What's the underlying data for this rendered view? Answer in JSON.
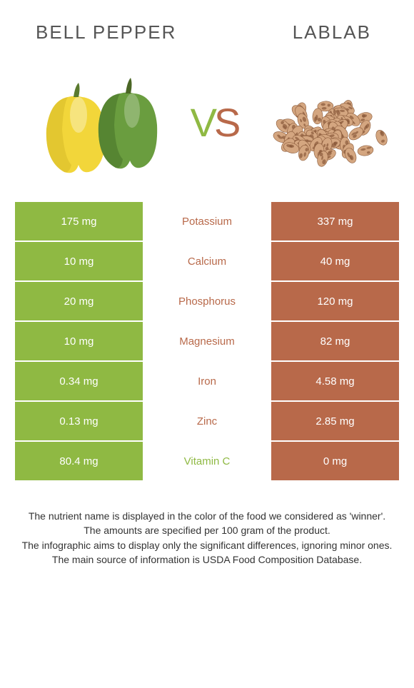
{
  "header": {
    "left_title": "Bell pepper",
    "right_title": "Lablab"
  },
  "vs": {
    "v": "V",
    "s": "S"
  },
  "colors": {
    "left_bg": "#8fb943",
    "right_bg": "#b8694a",
    "left_text": "#8fb943",
    "right_text": "#b8694a",
    "pepper_yellow": "#f2d63a",
    "pepper_yellow_shade": "#d9bc2a",
    "pepper_green": "#6a9d3f",
    "pepper_green_shade": "#4f7a2e",
    "pepper_stem": "#5a7a2e",
    "bean_light": "#d4a680",
    "bean_dark": "#8a5a3a"
  },
  "rows": [
    {
      "left": "175 mg",
      "label": "Potassium",
      "right": "337 mg",
      "winner": "right"
    },
    {
      "left": "10 mg",
      "label": "Calcium",
      "right": "40 mg",
      "winner": "right"
    },
    {
      "left": "20 mg",
      "label": "Phosphorus",
      "right": "120 mg",
      "winner": "right"
    },
    {
      "left": "10 mg",
      "label": "Magnesium",
      "right": "82 mg",
      "winner": "right"
    },
    {
      "left": "0.34 mg",
      "label": "Iron",
      "right": "4.58 mg",
      "winner": "right"
    },
    {
      "left": "0.13 mg",
      "label": "Zinc",
      "right": "2.85 mg",
      "winner": "right"
    },
    {
      "left": "80.4 mg",
      "label": "Vitamin C",
      "right": "0 mg",
      "winner": "left"
    }
  ],
  "footer": {
    "line1": "The nutrient name is displayed in the color of the food we considered as 'winner'.",
    "line2": "The amounts are specified per 100 gram of the product.",
    "line3": "The infographic aims to display only the significant differences, ignoring minor ones.",
    "line4": "The main source of information is USDA Food Composition Database."
  }
}
